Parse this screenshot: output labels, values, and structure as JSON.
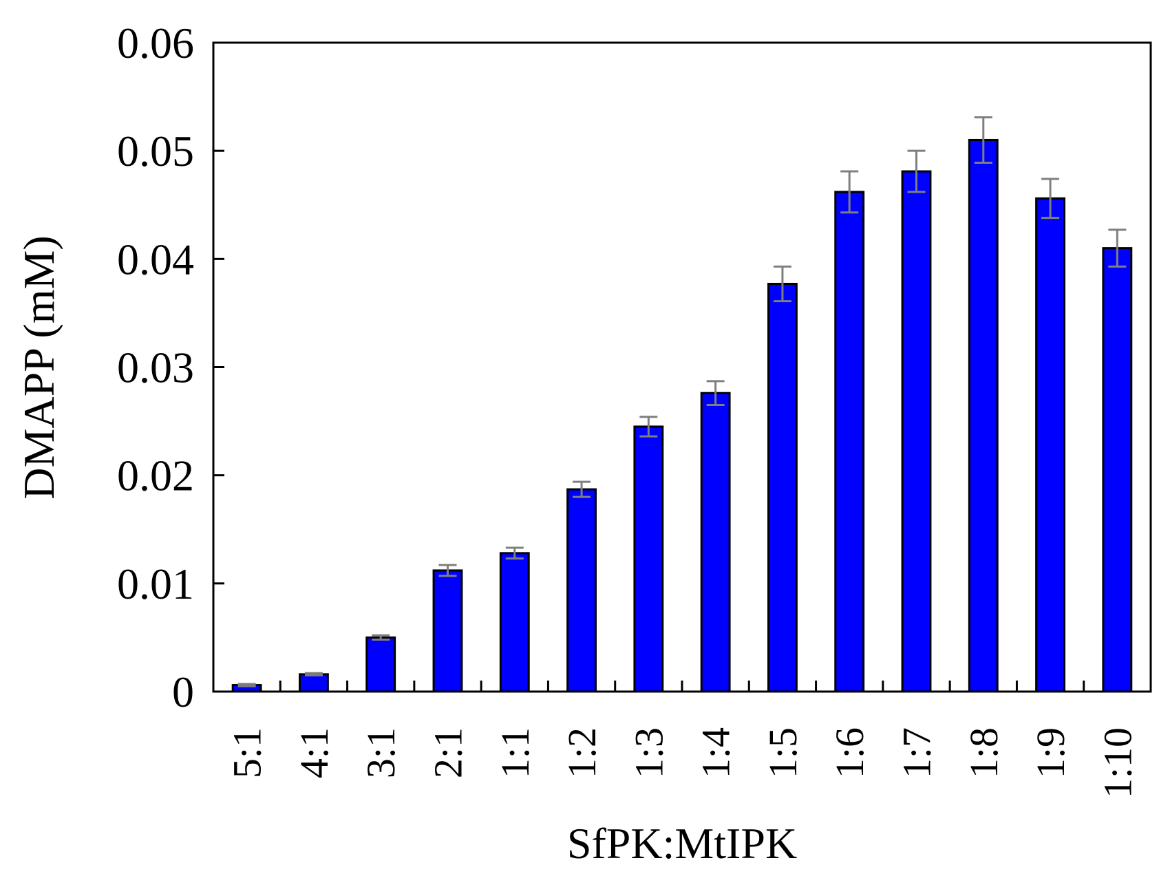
{
  "chart_data": {
    "type": "bar",
    "title": "",
    "xlabel": "SfPK:MtIPK",
    "ylabel": "DMAPP (mM)",
    "ylim": [
      0,
      0.06
    ],
    "yticks": [
      "0",
      "0.01",
      "0.02",
      "0.03",
      "0.04",
      "0.05",
      "0.06"
    ],
    "grid": false,
    "legend": "none",
    "categories": [
      "5:1",
      "4:1",
      "3:1",
      "2:1",
      "1:1",
      "1:2",
      "1:3",
      "1:4",
      "1:5",
      "1:6",
      "1:7",
      "1:8",
      "1:9",
      "1:10"
    ],
    "values": [
      0.0006,
      0.0016,
      0.005,
      0.0112,
      0.0128,
      0.0187,
      0.0245,
      0.0276,
      0.0377,
      0.0462,
      0.0481,
      0.051,
      0.0456,
      0.041
    ],
    "errors": [
      0.0001,
      0.0001,
      0.0002,
      0.0005,
      0.0005,
      0.0007,
      0.0009,
      0.0011,
      0.0016,
      0.0019,
      0.0019,
      0.0021,
      0.0018,
      0.0017
    ],
    "colors": {
      "bar": "#0000ff",
      "bar_edge": "#000000",
      "error_bar": "#7f7f7f"
    }
  }
}
